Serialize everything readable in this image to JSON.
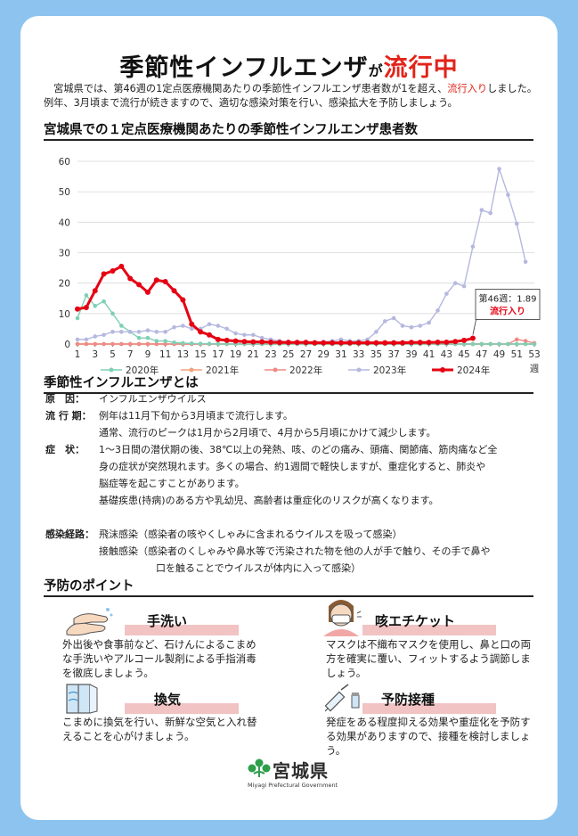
{
  "title": {
    "part1": "季節性インフルエンザ",
    "part2": "が",
    "part3": "流行中"
  },
  "intro": {
    "a": "宮城県では、第46週の1定点医療機関あたりの季節性インフルエンザ患者数が1を超え、",
    "b": "流行入り",
    "c": "しました。例年、3月頃まで流行が続きますので、適切な感染対策を行い、感染拡大を予防しましょう。"
  },
  "chart_title": "宮城県での１定点医療機関あたりの季節性インフルエンザ患者数",
  "chart_data": {
    "type": "line",
    "xlabel": "週",
    "x_ticks": [
      1,
      3,
      5,
      7,
      9,
      11,
      13,
      15,
      17,
      19,
      21,
      23,
      25,
      27,
      29,
      31,
      33,
      35,
      37,
      39,
      41,
      43,
      45,
      47,
      49,
      51,
      53
    ],
    "ylim": [
      0,
      60
    ],
    "y_ticks": [
      0,
      10,
      20,
      30,
      40,
      50,
      60
    ],
    "series": [
      {
        "name": "2020年",
        "color": "#7fcfb5",
        "start": 1,
        "values": [
          8.5,
          16,
          12.5,
          14,
          10,
          6,
          4,
          2,
          2,
          1,
          1,
          0.5,
          0.3,
          0.2,
          0.1,
          0.1,
          0,
          0,
          0,
          0,
          0,
          0,
          0,
          0,
          0,
          0,
          0,
          0,
          0,
          0,
          0,
          0,
          0,
          0,
          0,
          0,
          0,
          0,
          0,
          0,
          0,
          0,
          0,
          0,
          0,
          0,
          0,
          0,
          0,
          0,
          0,
          0,
          0
        ]
      },
      {
        "name": "2021年",
        "color": "#f2a27a",
        "start": 1,
        "values": [
          0,
          0,
          0,
          0,
          0,
          0,
          0,
          0,
          0,
          0,
          0,
          0,
          0,
          0,
          0,
          0,
          0,
          0,
          0,
          0,
          0,
          0,
          0,
          0,
          0,
          0,
          0,
          0,
          0,
          0,
          0,
          0,
          0,
          0,
          0,
          0,
          0,
          0,
          0,
          0,
          0,
          0,
          0,
          0,
          0,
          0,
          0,
          0,
          0,
          0,
          0,
          0,
          0
        ]
      },
      {
        "name": "2022年",
        "color": "#ef8a84",
        "start": 1,
        "values": [
          0,
          0,
          0,
          0,
          0,
          0,
          0,
          0,
          0,
          0,
          0,
          0,
          0,
          0,
          0,
          0,
          0,
          0,
          0,
          0,
          0,
          0,
          0,
          0,
          0,
          0,
          0,
          0,
          0,
          0,
          0,
          0,
          0,
          0,
          0,
          0,
          0,
          0,
          0,
          0,
          0,
          0,
          0,
          0,
          0,
          0,
          0,
          0,
          0,
          0,
          1.5,
          1,
          0.3
        ]
      },
      {
        "name": "2023年",
        "color": "#b5b8df",
        "start": 1,
        "values": [
          1.5,
          1.5,
          2.5,
          3,
          4,
          4,
          4,
          4,
          4.5,
          4,
          4,
          5.5,
          6,
          5,
          5,
          6.5,
          6,
          5,
          3.5,
          3,
          3,
          2,
          1.5,
          1,
          0.8,
          0.6,
          0.5,
          0.6,
          0.7,
          1,
          1.5,
          1,
          1,
          1.5,
          4,
          7.5,
          8.5,
          6,
          5.5,
          6,
          7,
          11,
          16.5,
          20,
          19,
          32,
          44,
          43,
          57.5,
          49,
          39.5,
          27
        ]
      },
      {
        "name": "2024年",
        "color": "#e60012",
        "start": 1,
        "values": [
          11.5,
          12,
          17.5,
          23,
          24,
          25.5,
          21.5,
          19.5,
          17,
          21,
          20.5,
          17.5,
          14.5,
          6.5,
          4,
          3,
          1.5,
          1.2,
          1,
          0.8,
          0.7,
          0.7,
          0.6,
          0.5,
          0.5,
          0.5,
          0.5,
          0.4,
          0.4,
          0.4,
          0.4,
          0.4,
          0.4,
          0.4,
          0.4,
          0.4,
          0.4,
          0.4,
          0.5,
          0.5,
          0.5,
          0.6,
          0.6,
          0.8,
          1.2,
          1.89
        ]
      }
    ],
    "annotation": {
      "line1": "第46週：1.89",
      "line2": "流行入り"
    }
  },
  "about": {
    "heading": "季節性インフルエンザとは",
    "rows": [
      {
        "label": "原　因：",
        "lines": [
          "インフルエンザウイルス"
        ]
      },
      {
        "label": "流 行 期：",
        "lines": [
          "例年は11月下旬から3月頃まで流行します。",
          "通常、流行のピークは1月から2月頃で、4月から5月頃にかけて減少します。"
        ]
      },
      {
        "label": "症　状：",
        "lines": [
          "1～3日間の潜伏期の後、38℃以上の発熱、咳、のどの痛み、頭痛、関節痛、筋肉痛など全",
          "身の症状が突然現れます。多くの場合、約1週間で軽快しますが、重症化すると、肺炎や",
          "脳症等を起こすことがあります。",
          "基礎疾患(持病)のある方や乳幼児、高齢者は重症化のリスクが高くなります。"
        ]
      },
      {
        "label": "感染経路：",
        "lines": [
          "飛沫感染（感染者の咳やくしゃみに含まれるウイルスを吸って感染）",
          "接触感染（感染者のくしゃみや鼻水等で汚染された物を他の人が手で触り、その手で鼻や",
          "口を触ることでウイルスが体内に入って感染）"
        ]
      }
    ]
  },
  "prevention": {
    "heading": "予防のポイント",
    "items": [
      {
        "title": "手洗い",
        "icon": "handwashing-icon",
        "body": "外出後や食事前など、石けんによるこまめな手洗いやアルコール製剤による手指消毒を徹底しましょう。"
      },
      {
        "title": "咳エチケット",
        "icon": "masked-person-icon",
        "body": "マスクは不織布マスクを使用し、鼻と口の両方を確実に覆い、フィットするよう調節しましょう。"
      },
      {
        "title": "換気",
        "icon": "window-ventilation-icon",
        "body": "こまめに換気を行い、新鮮な空気と入れ替えることを心がけましょう。"
      },
      {
        "title": "予防接種",
        "icon": "vaccine-syringe-icon",
        "body": "発症をある程度抑える効果や重症化を予防する効果がありますので、接種を検討しましょう。"
      }
    ]
  },
  "footer": {
    "name": "宮城県",
    "sub": "Miyagi Prefectural Government"
  }
}
